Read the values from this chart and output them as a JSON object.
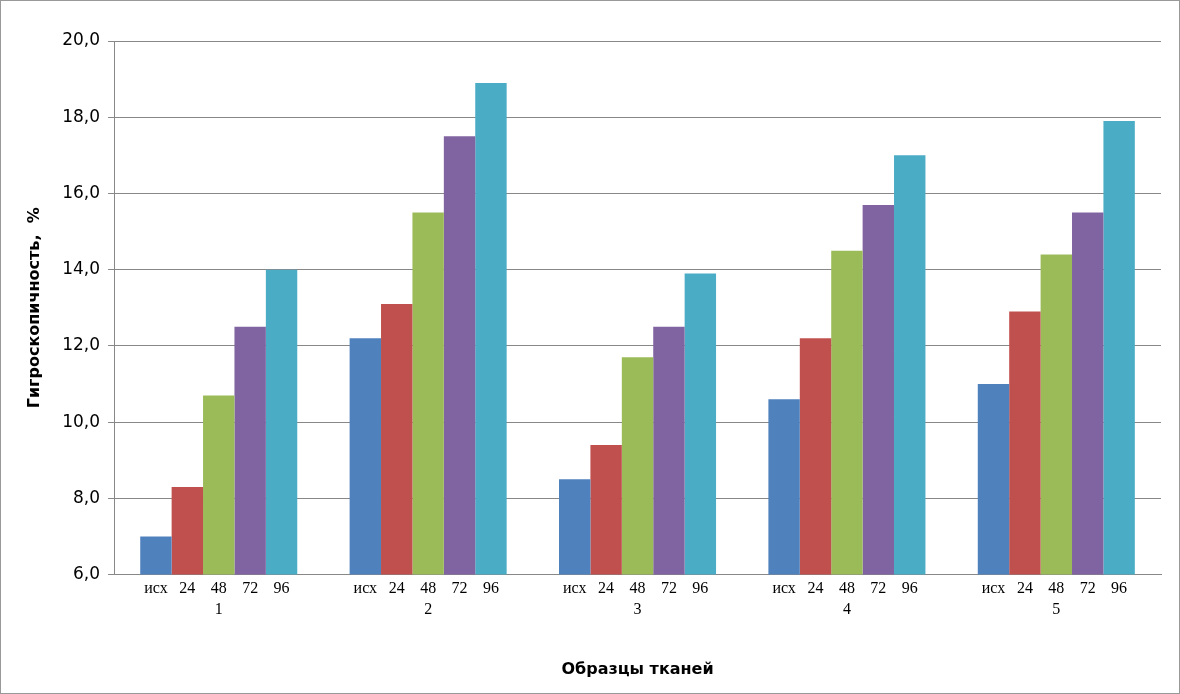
{
  "chart_data": {
    "type": "bar",
    "xlabel": "Образцы тканей",
    "ylabel": "Гигроскопичность,  %",
    "categories": [
      "1",
      "2",
      "3",
      "4",
      "5"
    ],
    "series": [
      {
        "name": "исх",
        "color": "#4f81bd",
        "values": [
          7.0,
          12.2,
          8.5,
          10.6,
          11.0
        ]
      },
      {
        "name": "24",
        "color": "#c0504d",
        "values": [
          8.3,
          13.1,
          9.4,
          12.2,
          12.9
        ]
      },
      {
        "name": "48",
        "color": "#9bbb59",
        "values": [
          10.7,
          15.5,
          11.7,
          14.5,
          14.4
        ]
      },
      {
        "name": "72",
        "color": "#8064a2",
        "values": [
          12.5,
          17.5,
          12.5,
          15.7,
          15.5
        ]
      },
      {
        "name": "96",
        "color": "#4bacc6",
        "values": [
          14.0,
          18.9,
          13.9,
          17.0,
          17.9
        ]
      }
    ],
    "ylim": [
      6,
      20
    ],
    "yticks": [
      {
        "value": 6,
        "label": "6,0"
      },
      {
        "value": 8,
        "label": "8,0"
      },
      {
        "value": 10,
        "label": "10,0"
      },
      {
        "value": 12,
        "label": "12,0"
      },
      {
        "value": 14,
        "label": "14,0"
      },
      {
        "value": 16,
        "label": "16,0"
      },
      {
        "value": 18,
        "label": "18,0"
      },
      {
        "value": 20,
        "label": "20,0"
      }
    ],
    "grid": "y",
    "legend": false
  }
}
